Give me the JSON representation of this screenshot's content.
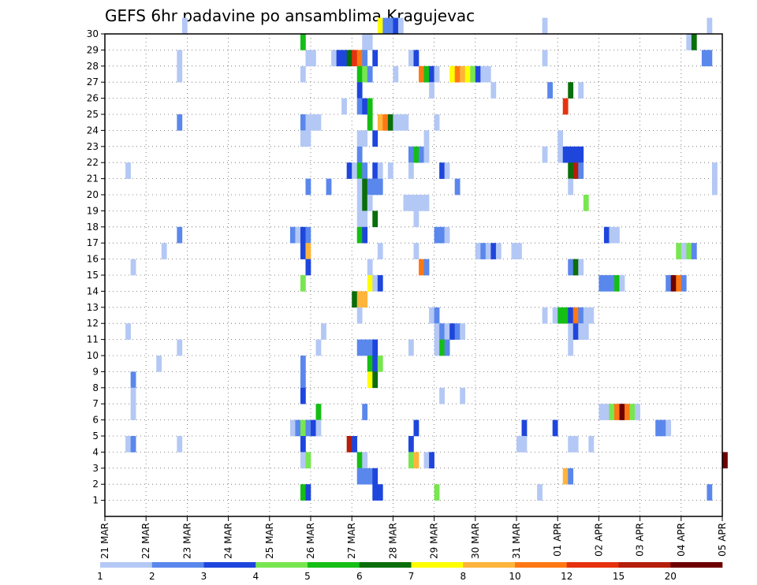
{
  "chart_data": {
    "type": "heatmap",
    "title": "GEFS 6hr padavine po ansamblima Kragujevac",
    "xlabel": "",
    "ylabel": "",
    "y_ticks": [
      1,
      2,
      3,
      4,
      5,
      6,
      7,
      8,
      9,
      10,
      11,
      12,
      13,
      14,
      15,
      16,
      17,
      18,
      19,
      20,
      21,
      22,
      23,
      24,
      25,
      26,
      27,
      28,
      29,
      30
    ],
    "ylim": [
      0,
      30
    ],
    "x_tick_labels": [
      "21 MAR",
      "22 MAR",
      "23 MAR",
      "24 MAR",
      "25 MAR",
      "26 MAR",
      "27 MAR",
      "28 MAR",
      "29 MAR",
      "30 MAR",
      "31 MAR",
      "01 APR",
      "02 APR",
      "03 APR",
      "04 APR",
      "05 APR"
    ],
    "steps_per_day": 4,
    "grid": true,
    "colorbar": {
      "placement": "bottom",
      "labels": [
        "1",
        "2",
        "3",
        "4",
        "5",
        "6",
        "7",
        "8",
        "10",
        "12",
        "15",
        "20"
      ],
      "colors": [
        "#b4c8f5",
        "#5a87ec",
        "#1e46dc",
        "#78e650",
        "#14be14",
        "#0a6e0a",
        "#ffff00",
        "#ffb43c",
        "#ff7814",
        "#e6320f",
        "#b41e0a",
        "#6e0000"
      ]
    },
    "notes": "cells: [member (0-30), time step (6h from 21 MAR 00z), color class index]",
    "cells": [
      [
        30,
        15,
        0
      ],
      [
        30,
        53,
        6
      ],
      [
        30,
        54,
        1
      ],
      [
        30,
        55,
        1
      ],
      [
        30,
        56,
        2
      ],
      [
        30,
        57,
        0
      ],
      [
        30,
        85,
        0
      ],
      [
        30,
        117,
        0
      ],
      [
        29,
        38,
        4
      ],
      [
        29,
        50,
        0
      ],
      [
        29,
        51,
        0
      ],
      [
        29,
        113,
        0
      ],
      [
        29,
        114,
        5
      ],
      [
        28,
        14,
        0
      ],
      [
        28,
        39,
        0
      ],
      [
        28,
        40,
        0
      ],
      [
        28,
        44,
        0
      ],
      [
        28,
        45,
        2
      ],
      [
        28,
        46,
        2
      ],
      [
        28,
        47,
        5
      ],
      [
        28,
        48,
        9
      ],
      [
        28,
        49,
        8
      ],
      [
        28,
        50,
        1
      ],
      [
        28,
        52,
        2
      ],
      [
        28,
        59,
        0
      ],
      [
        28,
        60,
        2
      ],
      [
        28,
        85,
        0
      ],
      [
        28,
        116,
        1
      ],
      [
        28,
        117,
        1
      ],
      [
        27,
        14,
        0
      ],
      [
        27,
        38,
        0
      ],
      [
        27,
        49,
        4
      ],
      [
        27,
        50,
        3
      ],
      [
        27,
        51,
        1
      ],
      [
        27,
        56,
        0
      ],
      [
        27,
        61,
        8
      ],
      [
        27,
        62,
        4
      ],
      [
        27,
        63,
        2
      ],
      [
        27,
        64,
        0
      ],
      [
        27,
        67,
        6
      ],
      [
        27,
        68,
        8
      ],
      [
        27,
        69,
        7
      ],
      [
        27,
        70,
        6
      ],
      [
        27,
        71,
        3
      ],
      [
        27,
        72,
        2
      ],
      [
        27,
        73,
        0
      ],
      [
        27,
        74,
        0
      ],
      [
        26,
        49,
        2
      ],
      [
        26,
        63,
        0
      ],
      [
        26,
        75,
        0
      ],
      [
        26,
        86,
        1
      ],
      [
        26,
        90,
        5
      ],
      [
        26,
        92,
        0
      ],
      [
        25,
        46,
        0
      ],
      [
        25,
        49,
        1
      ],
      [
        25,
        50,
        2
      ],
      [
        25,
        51,
        4
      ],
      [
        25,
        89,
        9
      ],
      [
        24,
        14,
        1
      ],
      [
        24,
        38,
        1
      ],
      [
        24,
        39,
        0
      ],
      [
        24,
        40,
        0
      ],
      [
        24,
        41,
        0
      ],
      [
        24,
        51,
        4
      ],
      [
        24,
        53,
        7
      ],
      [
        24,
        54,
        8
      ],
      [
        24,
        55,
        5
      ],
      [
        24,
        56,
        0
      ],
      [
        24,
        57,
        0
      ],
      [
        24,
        58,
        0
      ],
      [
        24,
        64,
        0
      ],
      [
        23,
        38,
        0
      ],
      [
        23,
        39,
        0
      ],
      [
        23,
        49,
        0
      ],
      [
        23,
        50,
        0
      ],
      [
        23,
        52,
        2
      ],
      [
        23,
        62,
        0
      ],
      [
        23,
        88,
        0
      ],
      [
        22,
        49,
        1
      ],
      [
        22,
        59,
        1
      ],
      [
        22,
        60,
        4
      ],
      [
        22,
        61,
        1
      ],
      [
        22,
        62,
        0
      ],
      [
        22,
        85,
        0
      ],
      [
        22,
        88,
        0
      ],
      [
        22,
        89,
        2
      ],
      [
        22,
        90,
        2
      ],
      [
        22,
        91,
        2
      ],
      [
        22,
        92,
        2
      ],
      [
        21,
        4,
        0
      ],
      [
        21,
        47,
        2
      ],
      [
        21,
        48,
        0
      ],
      [
        21,
        49,
        4
      ],
      [
        21,
        50,
        1
      ],
      [
        21,
        52,
        2
      ],
      [
        21,
        53,
        0
      ],
      [
        21,
        55,
        0
      ],
      [
        21,
        59,
        0
      ],
      [
        21,
        65,
        2
      ],
      [
        21,
        66,
        0
      ],
      [
        21,
        90,
        5
      ],
      [
        21,
        91,
        10
      ],
      [
        21,
        92,
        1
      ],
      [
        21,
        118,
        0
      ],
      [
        20,
        39,
        1
      ],
      [
        20,
        43,
        1
      ],
      [
        20,
        49,
        0
      ],
      [
        20,
        50,
        5
      ],
      [
        20,
        51,
        1
      ],
      [
        20,
        52,
        1
      ],
      [
        20,
        53,
        1
      ],
      [
        20,
        68,
        1
      ],
      [
        20,
        90,
        0
      ],
      [
        20,
        118,
        0
      ],
      [
        19,
        49,
        0
      ],
      [
        19,
        50,
        5
      ],
      [
        19,
        51,
        0
      ],
      [
        19,
        58,
        0
      ],
      [
        19,
        59,
        0
      ],
      [
        19,
        60,
        0
      ],
      [
        19,
        61,
        0
      ],
      [
        19,
        62,
        0
      ],
      [
        19,
        93,
        3
      ],
      [
        18,
        49,
        0
      ],
      [
        18,
        50,
        0
      ],
      [
        18,
        52,
        5
      ],
      [
        18,
        60,
        0
      ],
      [
        17,
        14,
        1
      ],
      [
        17,
        36,
        1
      ],
      [
        17,
        37,
        0
      ],
      [
        17,
        38,
        2
      ],
      [
        17,
        39,
        1
      ],
      [
        17,
        49,
        4
      ],
      [
        17,
        50,
        2
      ],
      [
        17,
        64,
        1
      ],
      [
        17,
        65,
        1
      ],
      [
        17,
        66,
        0
      ],
      [
        17,
        97,
        2
      ],
      [
        17,
        98,
        0
      ],
      [
        17,
        99,
        0
      ],
      [
        16,
        11,
        0
      ],
      [
        16,
        38,
        2
      ],
      [
        16,
        39,
        7
      ],
      [
        16,
        53,
        0
      ],
      [
        16,
        60,
        0
      ],
      [
        16,
        72,
        0
      ],
      [
        16,
        73,
        1
      ],
      [
        16,
        74,
        0
      ],
      [
        16,
        75,
        2
      ],
      [
        16,
        76,
        0
      ],
      [
        16,
        79,
        0
      ],
      [
        16,
        80,
        0
      ],
      [
        16,
        111,
        3
      ],
      [
        16,
        112,
        0
      ],
      [
        16,
        113,
        3
      ],
      [
        16,
        114,
        1
      ],
      [
        15,
        5,
        0
      ],
      [
        15,
        39,
        2
      ],
      [
        15,
        51,
        0
      ],
      [
        15,
        61,
        8
      ],
      [
        15,
        62,
        1
      ],
      [
        15,
        90,
        1
      ],
      [
        15,
        91,
        5
      ],
      [
        15,
        92,
        0
      ],
      [
        14,
        38,
        3
      ],
      [
        14,
        51,
        6
      ],
      [
        14,
        52,
        0
      ],
      [
        14,
        53,
        2
      ],
      [
        14,
        96,
        1
      ],
      [
        14,
        97,
        1
      ],
      [
        14,
        98,
        1
      ],
      [
        14,
        99,
        4
      ],
      [
        14,
        100,
        0
      ],
      [
        14,
        109,
        1
      ],
      [
        14,
        110,
        11
      ],
      [
        14,
        111,
        8
      ],
      [
        14,
        112,
        1
      ],
      [
        13,
        48,
        5
      ],
      [
        13,
        49,
        7
      ],
      [
        13,
        50,
        7
      ],
      [
        12,
        49,
        0
      ],
      [
        12,
        63,
        0
      ],
      [
        12,
        64,
        1
      ],
      [
        12,
        85,
        0
      ],
      [
        12,
        87,
        0
      ],
      [
        12,
        88,
        4
      ],
      [
        12,
        89,
        4
      ],
      [
        12,
        90,
        2
      ],
      [
        12,
        91,
        8
      ],
      [
        12,
        92,
        1
      ],
      [
        12,
        93,
        0
      ],
      [
        12,
        94,
        0
      ],
      [
        11,
        4,
        0
      ],
      [
        11,
        42,
        0
      ],
      [
        11,
        64,
        0
      ],
      [
        11,
        65,
        1
      ],
      [
        11,
        66,
        0
      ],
      [
        11,
        67,
        2
      ],
      [
        11,
        68,
        1
      ],
      [
        11,
        69,
        0
      ],
      [
        11,
        90,
        0
      ],
      [
        11,
        91,
        2
      ],
      [
        11,
        92,
        0
      ],
      [
        11,
        93,
        0
      ],
      [
        10,
        14,
        0
      ],
      [
        10,
        41,
        0
      ],
      [
        10,
        49,
        1
      ],
      [
        10,
        50,
        1
      ],
      [
        10,
        51,
        1
      ],
      [
        10,
        52,
        2
      ],
      [
        10,
        59,
        0
      ],
      [
        10,
        64,
        0
      ],
      [
        10,
        65,
        4
      ],
      [
        10,
        66,
        1
      ],
      [
        10,
        90,
        0
      ],
      [
        9,
        10,
        0
      ],
      [
        9,
        38,
        1
      ],
      [
        9,
        51,
        4
      ],
      [
        9,
        52,
        2
      ],
      [
        9,
        53,
        3
      ],
      [
        8,
        5,
        1
      ],
      [
        8,
        38,
        1
      ],
      [
        8,
        51,
        6
      ],
      [
        8,
        52,
        5
      ],
      [
        7,
        5,
        0
      ],
      [
        7,
        38,
        2
      ],
      [
        7,
        65,
        0
      ],
      [
        7,
        69,
        0
      ],
      [
        6,
        5,
        0
      ],
      [
        6,
        41,
        4
      ],
      [
        6,
        50,
        1
      ],
      [
        6,
        96,
        0
      ],
      [
        6,
        97,
        0
      ],
      [
        6,
        98,
        3
      ],
      [
        6,
        99,
        8
      ],
      [
        6,
        100,
        11
      ],
      [
        6,
        101,
        8
      ],
      [
        6,
        102,
        3
      ],
      [
        6,
        103,
        0
      ],
      [
        5,
        36,
        0
      ],
      [
        5,
        37,
        1
      ],
      [
        5,
        38,
        3
      ],
      [
        5,
        39,
        1
      ],
      [
        5,
        40,
        2
      ],
      [
        5,
        41,
        0
      ],
      [
        5,
        60,
        2
      ],
      [
        5,
        81,
        2
      ],
      [
        5,
        87,
        2
      ],
      [
        5,
        107,
        1
      ],
      [
        5,
        108,
        1
      ],
      [
        5,
        109,
        0
      ],
      [
        4,
        4,
        0
      ],
      [
        4,
        5,
        1
      ],
      [
        4,
        14,
        0
      ],
      [
        4,
        38,
        2
      ],
      [
        4,
        47,
        10
      ],
      [
        4,
        48,
        2
      ],
      [
        4,
        59,
        2
      ],
      [
        4,
        80,
        0
      ],
      [
        4,
        81,
        0
      ],
      [
        4,
        90,
        0
      ],
      [
        4,
        91,
        0
      ],
      [
        4,
        94,
        0
      ],
      [
        3,
        38,
        0
      ],
      [
        3,
        39,
        3
      ],
      [
        3,
        49,
        4
      ],
      [
        3,
        50,
        0
      ],
      [
        3,
        59,
        3
      ],
      [
        3,
        60,
        7
      ],
      [
        3,
        62,
        0
      ],
      [
        3,
        63,
        2
      ],
      [
        3,
        120,
        11
      ],
      [
        2,
        49,
        1
      ],
      [
        2,
        50,
        1
      ],
      [
        2,
        51,
        1
      ],
      [
        2,
        52,
        2
      ],
      [
        2,
        89,
        7
      ],
      [
        2,
        90,
        1
      ],
      [
        1,
        38,
        4
      ],
      [
        1,
        39,
        2
      ],
      [
        1,
        52,
        2
      ],
      [
        1,
        53,
        2
      ],
      [
        1,
        64,
        3
      ],
      [
        1,
        84,
        0
      ],
      [
        1,
        117,
        1
      ]
    ]
  }
}
